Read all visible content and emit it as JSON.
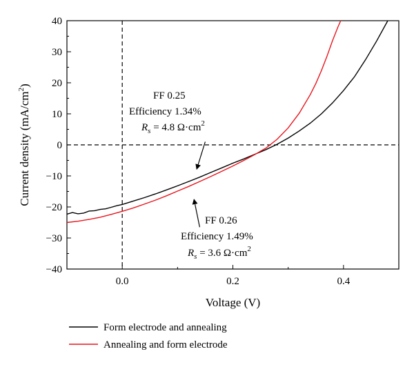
{
  "chart_data": {
    "type": "line",
    "xlabel": "Voltage (V)",
    "ylabel_main": "Current density (mA/cm",
    "ylabel_sup": "2",
    "ylabel_close": ")",
    "xlim": [
      -0.1,
      0.5
    ],
    "ylim": [
      -40,
      40
    ],
    "xticks": [
      0.0,
      0.2,
      0.4
    ],
    "xtick_labels": [
      "0.0",
      "0.2",
      "0.4"
    ],
    "yticks": [
      -40,
      -30,
      -20,
      -10,
      0,
      10,
      20,
      30,
      40
    ],
    "ytick_labels": [
      "−40",
      "−30",
      "−20",
      "−10",
      "0",
      "10",
      "20",
      "30",
      "40"
    ],
    "reference_lines": {
      "x": 0.0,
      "y": 0.0,
      "style": "dashed"
    },
    "series": [
      {
        "name": "Form electrode and annealing",
        "color": "#000000",
        "x": [
          -0.1,
          -0.09,
          -0.08,
          -0.07,
          -0.06,
          -0.05,
          -0.04,
          -0.03,
          -0.02,
          -0.01,
          0.0,
          0.02,
          0.04,
          0.06,
          0.08,
          0.1,
          0.12,
          0.14,
          0.16,
          0.18,
          0.2,
          0.22,
          0.24,
          0.26,
          0.28,
          0.3,
          0.32,
          0.34,
          0.36,
          0.38,
          0.4,
          0.42,
          0.44,
          0.46,
          0.48
        ],
        "y": [
          -22.3,
          -21.8,
          -22.2,
          -22.0,
          -21.3,
          -21.2,
          -20.8,
          -20.6,
          -20.1,
          -19.6,
          -19.2,
          -18.1,
          -17.0,
          -15.8,
          -14.5,
          -13.2,
          -11.8,
          -10.4,
          -8.9,
          -7.4,
          -5.9,
          -4.5,
          -3.0,
          -1.5,
          0.2,
          2.2,
          4.5,
          7.0,
          10.0,
          13.5,
          17.5,
          22.0,
          27.5,
          33.5,
          40.0
        ]
      },
      {
        "name": "Annealing and form electrode",
        "color": "#e8141b",
        "x": [
          -0.1,
          -0.08,
          -0.06,
          -0.04,
          -0.02,
          0.0,
          0.02,
          0.04,
          0.06,
          0.08,
          0.1,
          0.12,
          0.14,
          0.16,
          0.18,
          0.2,
          0.22,
          0.24,
          0.26,
          0.28,
          0.3,
          0.32,
          0.34,
          0.35,
          0.36,
          0.37,
          0.38,
          0.39,
          0.395
        ],
        "y": [
          -25.0,
          -24.6,
          -24.0,
          -23.3,
          -22.4,
          -21.4,
          -20.3,
          -19.1,
          -17.8,
          -16.4,
          -14.9,
          -13.4,
          -11.8,
          -10.2,
          -8.5,
          -6.8,
          -5.0,
          -3.1,
          -1.0,
          1.8,
          5.5,
          10.2,
          16.2,
          19.8,
          23.9,
          28.5,
          33.5,
          38.0,
          40.0
        ]
      }
    ],
    "annotations": [
      {
        "lines": [
          "FF 0.25",
          "Efficiency 1.34%"
        ],
        "rs_symbol": "R",
        "rs_sub": "s",
        "rs_value": " = 4.8 Ω·cm",
        "rs_sup": "2",
        "arrow_from": [
          0.15,
          1.0
        ],
        "arrow_to": [
          0.135,
          -7.6
        ]
      },
      {
        "lines": [
          "FF 0.26",
          "Efficiency 1.49%"
        ],
        "rs_symbol": "R",
        "rs_sub": "s",
        "rs_value": " = 3.6 Ω·cm",
        "rs_sup": "2",
        "arrow_from": [
          0.14,
          -26.5
        ],
        "arrow_to": [
          0.13,
          -17.8
        ]
      }
    ],
    "legend": {
      "placement": "bottom-left-below-plot",
      "entries": [
        "Form electrode and annealing",
        "Annealing and form electrode"
      ]
    }
  }
}
